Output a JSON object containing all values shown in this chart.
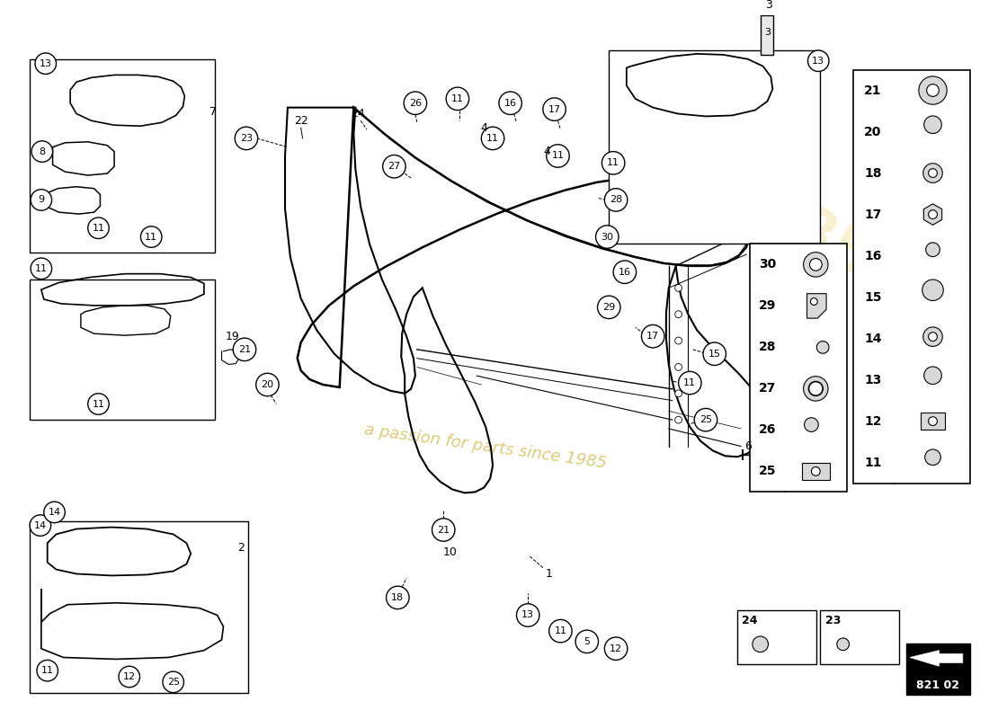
{
  "background_color": "#ffffff",
  "line_color": "#1a1a1a",
  "watermark_text": "a passion for parts since 1985",
  "watermark_color": "#d4b84a",
  "part_number": "821 02",
  "fig_width": 11.0,
  "fig_height": 8.0,
  "dpi": 100
}
